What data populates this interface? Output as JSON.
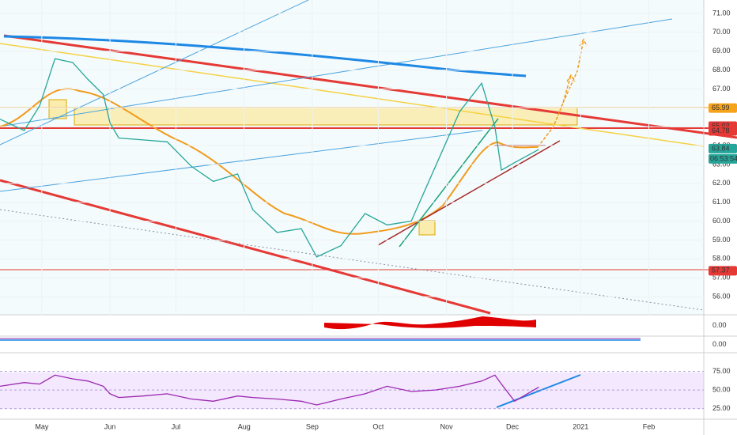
{
  "chart_data": [
    {
      "type": "line",
      "color": "#26a69a",
      "x": [
        -19,
        -8,
        -1,
        6,
        14,
        21,
        28,
        31,
        35,
        46,
        57,
        68,
        78,
        89,
        96,
        107,
        118,
        125,
        136,
        147,
        157,
        168,
        179,
        190,
        200,
        206,
        209,
        215,
        226
      ],
      "values": [
        65.4,
        64.8,
        66.1,
        68.6,
        68.4,
        67.5,
        66.7,
        65.2,
        64.4,
        64.3,
        64.2,
        62.9,
        62.1,
        62.5,
        60.6,
        59.4,
        59.6,
        58.1,
        58.7,
        60.4,
        59.8,
        60.0,
        62.9,
        65.8,
        67.3,
        65.0,
        62.7,
        63.1,
        63.8
      ],
      "xlim": [
        -19,
        301
      ],
      "ylim": [
        55.04,
        71.71
      ],
      "xticks": [
        {
          "value": 0,
          "label": "May"
        },
        {
          "value": 31,
          "label": "Jun"
        },
        {
          "value": 61,
          "label": "Jul"
        },
        {
          "value": 92,
          "label": "Aug"
        },
        {
          "value": 123,
          "label": "Sep"
        },
        {
          "value": 153,
          "label": "Oct"
        },
        {
          "value": 184,
          "label": "Nov"
        },
        {
          "value": 214,
          "label": "Dec"
        },
        {
          "value": 245,
          "label": "2021"
        },
        {
          "value": 276,
          "label": "Feb"
        }
      ],
      "yticks": [
        {
          "value": 56,
          "label": "56.00"
        },
        {
          "value": 57,
          "label": "57.00"
        },
        {
          "value": 58,
          "label": "58.00"
        },
        {
          "value": 59,
          "label": "59.00"
        },
        {
          "value": 60,
          "label": "60.00"
        },
        {
          "value": 61,
          "label": "61.00"
        },
        {
          "value": 62,
          "label": "62.00"
        },
        {
          "value": 63,
          "label": "63.00"
        },
        {
          "value": 64,
          "label": "64.00"
        },
        {
          "value": 65,
          "label": "65.00"
        },
        {
          "value": 66,
          "label": "66.00"
        },
        {
          "value": 67,
          "label": "67.00"
        },
        {
          "value": 68,
          "label": "68.00"
        },
        {
          "value": 69,
          "label": "69.00"
        },
        {
          "value": 70,
          "label": "70.00"
        },
        {
          "value": 71,
          "label": "71.00"
        }
      ],
      "price_tags": [
        {
          "value": 65.99,
          "color": "#f7a21b"
        },
        {
          "value": 65.03,
          "color": "#e53935"
        },
        {
          "value": 64.78,
          "color": "#e53935"
        },
        {
          "value": 63.84,
          "color": "#26a69a"
        },
        {
          "value": 57.37,
          "color": "#e53935"
        }
      ],
      "countdown": "06:53:54",
      "grid": true
    },
    {
      "type": "histogram",
      "ylim": [
        -1,
        1
      ],
      "yticks": [
        {
          "value": 0,
          "label": "0.00"
        }
      ]
    },
    {
      "type": "histogram",
      "ylim": [
        -1,
        1
      ],
      "yticks": [
        {
          "value": 0,
          "label": "0.00"
        }
      ]
    },
    {
      "type": "line",
      "color": "#9c27b0",
      "ylim": [
        10.9,
        100
      ],
      "values": [
        55,
        60,
        58,
        70,
        65,
        62,
        55,
        45,
        40,
        42,
        45,
        38,
        35,
        42,
        40,
        38,
        35,
        30,
        38,
        45,
        55,
        48,
        50,
        55,
        62,
        70,
        58,
        35,
        54
      ],
      "yticks": [
        {
          "value": 25,
          "label": "25.00"
        },
        {
          "value": 50,
          "label": "50.00"
        },
        {
          "value": 75,
          "label": "75.00"
        }
      ]
    }
  ]
}
